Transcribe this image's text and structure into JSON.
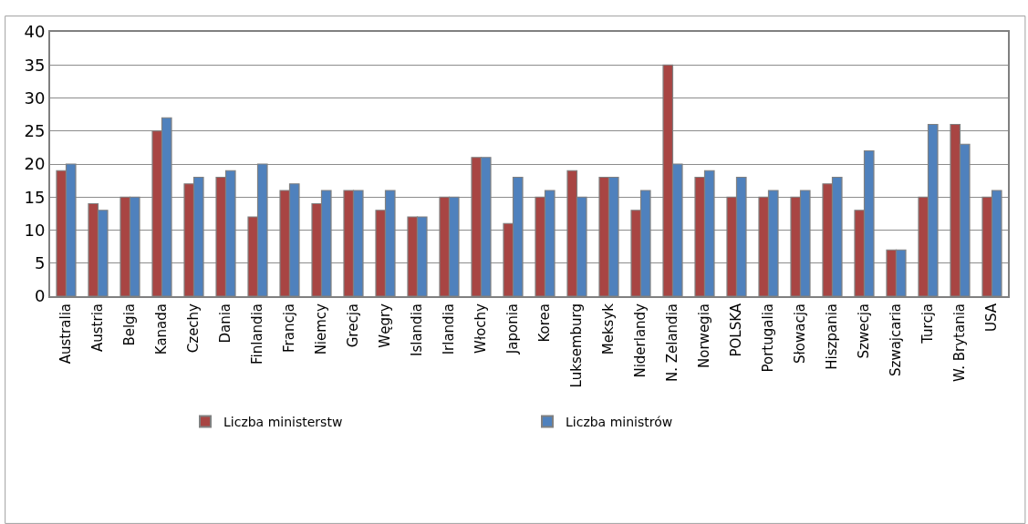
{
  "chart_data": {
    "type": "bar",
    "categories": [
      "Australia",
      "Austria",
      "Belgia",
      "Kanada",
      "Czechy",
      "Dania",
      "Finlandia",
      "Francja",
      "Niemcy",
      "Grecja",
      "Węgry",
      "Islandia",
      "Irlandia",
      "Włochy",
      "Japonia",
      "Korea",
      "Luksemburg",
      "Meksyk",
      "Niderlandy",
      "N. Zelandia",
      "Norwegia",
      "POLSKA",
      "Portugalia",
      "Słowacja",
      "Hiszpania",
      "Szwecja",
      "Szwajcaria",
      "Turcja",
      "W. Brytania",
      "USA"
    ],
    "series": [
      {
        "name": "Liczba ministerstw",
        "color": "#a84543",
        "values": [
          19,
          14,
          15,
          25,
          17,
          18,
          12,
          16,
          14,
          16,
          13,
          12,
          15,
          21,
          11,
          15,
          19,
          18,
          13,
          35,
          18,
          15,
          15,
          15,
          17,
          13,
          7,
          15,
          26,
          15
        ]
      },
      {
        "name": "Liczba ministrów",
        "color": "#4f81bd",
        "values": [
          20,
          13,
          15,
          27,
          18,
          19,
          20,
          17,
          16,
          16,
          16,
          12,
          15,
          21,
          18,
          16,
          15,
          18,
          16,
          20,
          19,
          18,
          16,
          16,
          18,
          22,
          7,
          26,
          23,
          16
        ]
      }
    ],
    "ylim": [
      0,
      40
    ],
    "yticks": [
      0,
      5,
      10,
      15,
      20,
      25,
      30,
      35,
      40
    ],
    "grid": "y",
    "legend": "bottom"
  }
}
